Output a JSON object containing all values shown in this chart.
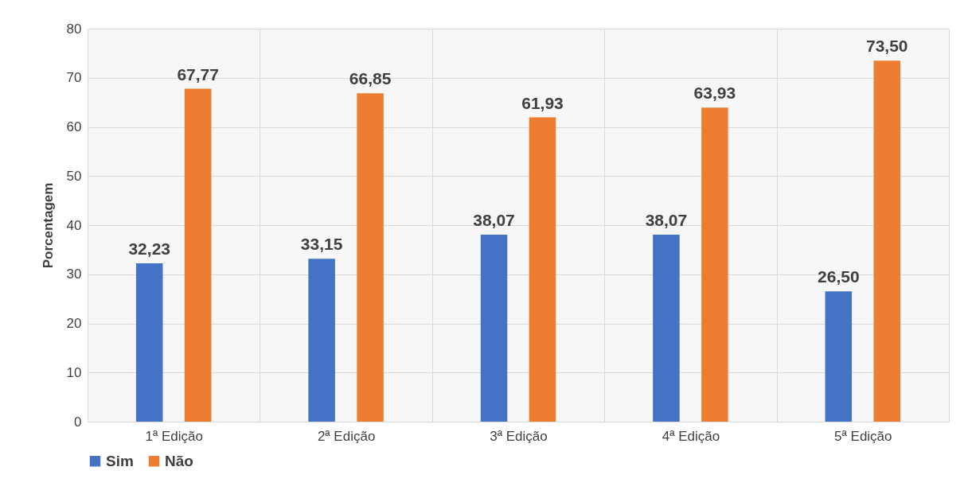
{
  "chart_data": {
    "type": "bar",
    "ylabel": "Porcentagem",
    "categories": [
      "1ª Edição",
      "2ª Edição",
      "3ª Edição",
      "4ª Edição",
      "5ª Edição"
    ],
    "series": [
      {
        "name": "Sim",
        "color": "#4472c4",
        "values": [
          32.23,
          33.15,
          38.07,
          38.07,
          26.5
        ],
        "value_labels": [
          "32,23",
          "33,15",
          "38,07",
          "38,07",
          "26,50"
        ]
      },
      {
        "name": "Não",
        "color": "#ed7d31",
        "values": [
          67.77,
          66.85,
          61.93,
          63.93,
          73.5
        ],
        "value_labels": [
          "67,77",
          "66,85",
          "61,93",
          "63,93",
          "73,50"
        ]
      }
    ],
    "ylim": [
      0,
      80
    ],
    "yticks": [
      0,
      10,
      20,
      30,
      40,
      50,
      60,
      70,
      80
    ],
    "grid": true,
    "legend": "bottom"
  }
}
